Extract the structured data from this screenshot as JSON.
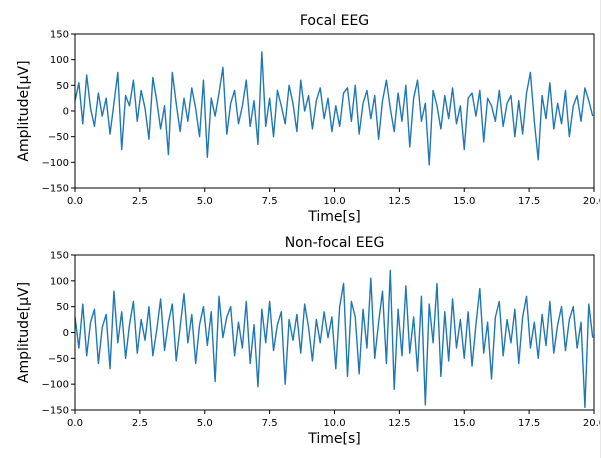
{
  "chart_data": [
    {
      "type": "line",
      "title": "Focal EEG",
      "xlabel": "Time[s]",
      "ylabel": "Amplitude[µV]",
      "xlim": [
        0,
        20
      ],
      "ylim": [
        -150,
        150
      ],
      "x_ticks": [
        0,
        2.5,
        5,
        7.5,
        10,
        12.5,
        15,
        17.5,
        20
      ],
      "x_tick_labels": [
        "0.0",
        "2.5",
        "5.0",
        "7.5",
        "10.0",
        "12.5",
        "15.0",
        "17.5",
        "20.0"
      ],
      "y_ticks": [
        -150,
        -100,
        -50,
        0,
        50,
        100,
        150
      ],
      "y_tick_labels": [
        "−150",
        "−100",
        "−50",
        "0",
        "50",
        "100",
        "150"
      ],
      "grid": false,
      "series": [
        {
          "color": "#1f77b4",
          "x": [
            0.0,
            0.15,
            0.3,
            0.45,
            0.6,
            0.75,
            0.9,
            1.05,
            1.2,
            1.35,
            1.5,
            1.65,
            1.8,
            1.95,
            2.1,
            2.25,
            2.4,
            2.55,
            2.7,
            2.85,
            3.0,
            3.15,
            3.3,
            3.45,
            3.6,
            3.75,
            3.9,
            4.05,
            4.2,
            4.35,
            4.5,
            4.65,
            4.8,
            4.95,
            5.1,
            5.25,
            5.4,
            5.55,
            5.7,
            5.85,
            6.0,
            6.15,
            6.3,
            6.45,
            6.6,
            6.75,
            6.9,
            7.05,
            7.2,
            7.35,
            7.5,
            7.65,
            7.8,
            7.95,
            8.1,
            8.25,
            8.4,
            8.55,
            8.7,
            8.85,
            9.0,
            9.15,
            9.3,
            9.45,
            9.6,
            9.75,
            9.9,
            10.05,
            10.2,
            10.35,
            10.5,
            10.65,
            10.8,
            10.95,
            11.1,
            11.25,
            11.4,
            11.55,
            11.7,
            11.85,
            12.0,
            12.15,
            12.3,
            12.45,
            12.6,
            12.75,
            12.9,
            13.05,
            13.2,
            13.35,
            13.5,
            13.65,
            13.8,
            13.95,
            14.1,
            14.25,
            14.4,
            14.55,
            14.7,
            14.85,
            15.0,
            15.15,
            15.3,
            15.45,
            15.6,
            15.75,
            15.9,
            16.05,
            16.2,
            16.35,
            16.5,
            16.65,
            16.8,
            16.95,
            17.1,
            17.25,
            17.4,
            17.55,
            17.7,
            17.85,
            18.0,
            18.15,
            18.3,
            18.45,
            18.6,
            18.75,
            18.9,
            19.05,
            19.2,
            19.35,
            19.5,
            19.65,
            19.8,
            19.95
          ],
          "y": [
            20,
            55,
            -25,
            70,
            5,
            -30,
            35,
            -10,
            25,
            -45,
            15,
            75,
            -75,
            30,
            10,
            60,
            -20,
            40,
            5,
            -55,
            65,
            20,
            -35,
            10,
            -85,
            75,
            15,
            -40,
            25,
            -20,
            45,
            5,
            -50,
            60,
            -90,
            25,
            -10,
            35,
            85,
            -45,
            15,
            40,
            -25,
            10,
            60,
            -30,
            20,
            -65,
            115,
            -30,
            25,
            -50,
            40,
            10,
            -25,
            50,
            15,
            -40,
            60,
            0,
            30,
            -35,
            20,
            45,
            -15,
            25,
            -40,
            10,
            -30,
            35,
            45,
            -20,
            50,
            -45,
            15,
            40,
            -15,
            30,
            -55,
            20,
            60,
            5,
            -40,
            35,
            -20,
            50,
            -70,
            25,
            60,
            -20,
            15,
            -105,
            40,
            10,
            -35,
            30,
            -15,
            45,
            -25,
            10,
            -75,
            25,
            35,
            -10,
            40,
            -60,
            25,
            10,
            -20,
            40,
            -30,
            15,
            30,
            -50,
            20,
            -45,
            35,
            75,
            -20,
            -95,
            30,
            -15,
            55,
            -35,
            15,
            -25,
            40,
            -50,
            10,
            30,
            -20,
            45,
            20,
            -10
          ]
        }
      ]
    },
    {
      "type": "line",
      "title": "Non-focal EEG",
      "xlabel": "Time[s]",
      "ylabel": "Amplitude[µV]",
      "xlim": [
        0,
        20
      ],
      "ylim": [
        -150,
        150
      ],
      "x_ticks": [
        0,
        2.5,
        5,
        7.5,
        10,
        12.5,
        15,
        17.5,
        20
      ],
      "x_tick_labels": [
        "0.0",
        "2.5",
        "5.0",
        "7.5",
        "10.0",
        "12.5",
        "15.0",
        "17.5",
        "20.0"
      ],
      "y_ticks": [
        -150,
        -100,
        -50,
        0,
        50,
        100,
        150
      ],
      "y_tick_labels": [
        "−150",
        "−100",
        "−50",
        "0",
        "50",
        "100",
        "150"
      ],
      "grid": false,
      "series": [
        {
          "color": "#1f77b4",
          "x": [
            0.0,
            0.15,
            0.3,
            0.45,
            0.6,
            0.75,
            0.9,
            1.05,
            1.2,
            1.35,
            1.5,
            1.65,
            1.8,
            1.95,
            2.1,
            2.25,
            2.4,
            2.55,
            2.7,
            2.85,
            3.0,
            3.15,
            3.3,
            3.45,
            3.6,
            3.75,
            3.9,
            4.05,
            4.2,
            4.35,
            4.5,
            4.65,
            4.8,
            4.95,
            5.1,
            5.25,
            5.4,
            5.55,
            5.7,
            5.85,
            6.0,
            6.15,
            6.3,
            6.45,
            6.6,
            6.75,
            6.9,
            7.05,
            7.2,
            7.35,
            7.5,
            7.65,
            7.8,
            7.95,
            8.1,
            8.25,
            8.4,
            8.55,
            8.7,
            8.85,
            9.0,
            9.15,
            9.3,
            9.45,
            9.6,
            9.75,
            9.9,
            10.05,
            10.2,
            10.35,
            10.5,
            10.65,
            10.8,
            10.95,
            11.1,
            11.25,
            11.4,
            11.55,
            11.7,
            11.85,
            12.0,
            12.15,
            12.3,
            12.45,
            12.6,
            12.75,
            12.9,
            13.05,
            13.2,
            13.35,
            13.5,
            13.65,
            13.8,
            13.95,
            14.1,
            14.25,
            14.4,
            14.55,
            14.7,
            14.85,
            15.0,
            15.15,
            15.3,
            15.45,
            15.6,
            15.75,
            15.9,
            16.05,
            16.2,
            16.35,
            16.5,
            16.65,
            16.8,
            16.95,
            17.1,
            17.25,
            17.4,
            17.55,
            17.7,
            17.85,
            18.0,
            18.15,
            18.3,
            18.45,
            18.6,
            18.75,
            18.9,
            19.05,
            19.2,
            19.35,
            19.5,
            19.65,
            19.8,
            19.95
          ],
          "y": [
            30,
            -30,
            55,
            -45,
            20,
            45,
            -60,
            10,
            35,
            -70,
            80,
            -20,
            40,
            -50,
            15,
            60,
            -40,
            25,
            -15,
            50,
            -45,
            5,
            65,
            -35,
            20,
            55,
            -55,
            10,
            75,
            -20,
            35,
            -60,
            15,
            50,
            -25,
            40,
            -95,
            70,
            -10,
            30,
            50,
            -45,
            20,
            -30,
            60,
            -60,
            15,
            -105,
            45,
            -20,
            60,
            -35,
            15,
            40,
            -100,
            25,
            -15,
            35,
            -40,
            55,
            10,
            -55,
            25,
            -20,
            40,
            -10,
            30,
            -70,
            50,
            95,
            -85,
            60,
            30,
            -80,
            45,
            -30,
            105,
            -50,
            20,
            80,
            -60,
            120,
            -110,
            45,
            -45,
            90,
            -40,
            30,
            -75,
            70,
            -140,
            55,
            -20,
            95,
            -85,
            40,
            -55,
            65,
            -30,
            25,
            -50,
            40,
            -65,
            15,
            85,
            -40,
            20,
            -90,
            30,
            60,
            -45,
            25,
            -20,
            45,
            -60,
            30,
            70,
            -30,
            20,
            -50,
            35,
            -25,
            60,
            -40,
            15,
            50,
            -35,
            25,
            50,
            -30,
            20,
            -145,
            55,
            -10
          ]
        }
      ]
    }
  ]
}
